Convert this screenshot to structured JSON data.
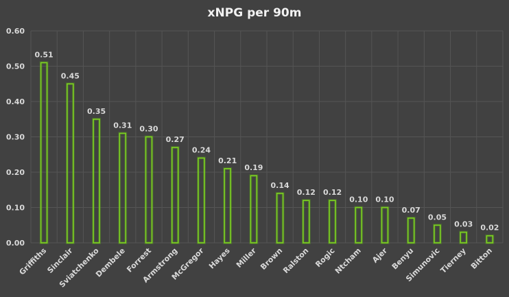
{
  "chart_data": {
    "type": "bar",
    "title": "xNPG per 90m",
    "xlabel": "",
    "ylabel": "",
    "categories": [
      "Griffiths",
      "Sinclair",
      "Sviatchenko",
      "Dembele",
      "Forrest",
      "Armstrong",
      "McGregor",
      "Hayes",
      "Miller",
      "Brown",
      "Ralston",
      "Rogic",
      "Ntcham",
      "Ajer",
      "Benyu",
      "Simunovic",
      "Tierney",
      "Bitton"
    ],
    "values": [
      0.51,
      0.45,
      0.35,
      0.31,
      0.3,
      0.27,
      0.24,
      0.21,
      0.19,
      0.14,
      0.12,
      0.12,
      0.1,
      0.1,
      0.07,
      0.05,
      0.03,
      0.02
    ],
    "data_labels": [
      "0.51",
      "0.45",
      "0.35",
      "0.31",
      "0.30",
      "0.27",
      "0.24",
      "0.21",
      "0.19",
      "0.14",
      "0.12",
      "0.12",
      "0.10",
      "0.10",
      "0.07",
      "0.05",
      "0.03",
      "0.02"
    ],
    "yticks": [
      0.0,
      0.1,
      0.2,
      0.3,
      0.4,
      0.5,
      0.6
    ],
    "ytick_labels": [
      "0.00",
      "0.10",
      "0.20",
      "0.30",
      "0.40",
      "0.50",
      "0.60"
    ],
    "ylim": [
      0,
      0.6
    ],
    "grid": true,
    "legend": "none",
    "colors": {
      "background": "#414141",
      "bar_outline": "#7ed321",
      "bar_glow": "#5aa21a",
      "bar_fill": "#2f3a27",
      "gridline": "#555555",
      "text": "#d9d9d9",
      "title": "#f2f2f2"
    }
  }
}
